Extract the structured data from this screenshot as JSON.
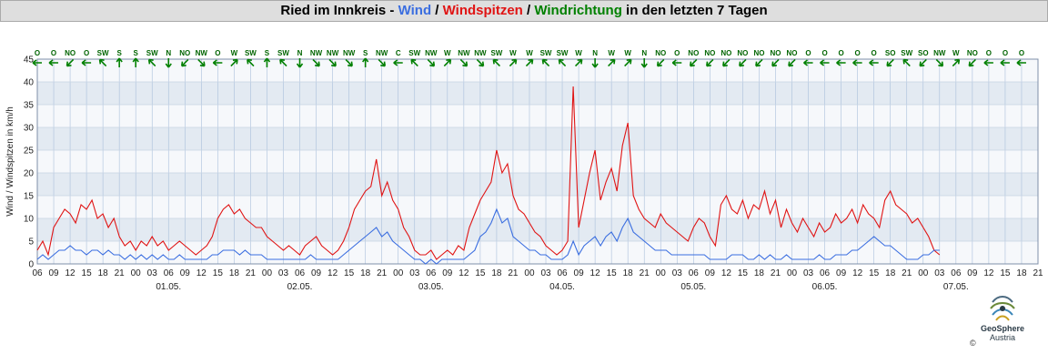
{
  "header": {
    "station": "Ried im Innkreis",
    "sep1": " - ",
    "wind": "Wind",
    "slash1": " / ",
    "gusts": "Windspitzen",
    "slash2": " / ",
    "direction": "Windrichtung",
    "suffix": " in den letzten 7 Tagen"
  },
  "footer": {
    "logo_name": "GeoSphere",
    "logo_sub": "Austria",
    "copyright": "©"
  },
  "colors": {
    "wind": "#3b6ee0",
    "gusts": "#e01414",
    "direction": "#008000",
    "band_dark": "#e3eaf2",
    "band_light": "#f6f8fb",
    "grid": "#a9bfdb"
  },
  "chart_data": {
    "type": "line",
    "ylabel": "Wind / Windspitzen in km/h",
    "ylim": [
      0,
      45
    ],
    "yticks": [
      0,
      5,
      10,
      15,
      20,
      25,
      30,
      35,
      40,
      45
    ],
    "xlim_hours": [
      0,
      165
    ],
    "x_tick_labels": [
      "06",
      "09",
      "12",
      "15",
      "18",
      "21",
      "00",
      "03",
      "06",
      "09",
      "12",
      "15",
      "18",
      "21",
      "00",
      "03",
      "06",
      "09",
      "12",
      "15",
      "18",
      "21",
      "00",
      "03",
      "06",
      "09",
      "12",
      "15",
      "18",
      "21",
      "00",
      "03",
      "06",
      "09",
      "12",
      "15",
      "18",
      "21",
      "00",
      "03",
      "06",
      "09",
      "12",
      "15",
      "18",
      "21",
      "00",
      "03",
      "06",
      "09",
      "12",
      "15",
      "18",
      "21",
      "00",
      "03",
      "06",
      "09",
      "12",
      "15",
      "18",
      "21"
    ],
    "day_labels": [
      {
        "label": "01.05.",
        "hour": 30
      },
      {
        "label": "02.05.",
        "hour": 54
      },
      {
        "label": "03.05.",
        "hour": 78
      },
      {
        "label": "04.05.",
        "hour": 102
      },
      {
        "label": "05.05.",
        "hour": 126
      },
      {
        "label": "06.05.",
        "hour": 150
      },
      {
        "label": "07.05.",
        "hour": 174
      }
    ],
    "series": [
      {
        "name": "Windspitzen",
        "x": [
          0,
          1,
          2,
          3,
          4,
          5,
          6,
          7,
          8,
          9,
          10,
          11,
          12,
          13,
          14,
          15,
          16,
          17,
          18,
          19,
          20,
          21,
          22,
          23,
          24,
          25,
          26,
          27,
          28,
          29,
          30,
          31,
          32,
          33,
          34,
          35,
          36,
          37,
          38,
          39,
          40,
          41,
          42,
          43,
          44,
          45,
          46,
          47,
          48,
          49,
          50,
          51,
          52,
          53,
          54,
          55,
          56,
          57,
          58,
          59,
          60,
          61,
          62,
          63,
          64,
          65,
          66,
          67,
          68,
          69,
          70,
          71,
          72,
          73,
          74,
          75,
          76,
          77,
          78,
          79,
          80,
          81,
          82,
          83,
          84,
          85,
          86,
          87,
          88,
          89,
          90,
          91,
          92,
          93,
          94,
          95,
          96,
          97,
          98,
          99,
          100,
          101,
          102,
          103,
          104,
          105,
          106,
          107,
          108,
          109,
          110,
          111,
          112,
          113,
          114,
          115,
          116,
          117,
          118,
          119,
          120,
          121,
          122,
          123,
          124,
          125,
          126,
          127,
          128,
          129,
          130,
          131,
          132,
          133,
          134,
          135,
          136,
          137,
          138,
          139,
          140,
          141,
          142,
          143,
          144,
          145,
          146,
          147,
          148,
          149,
          150,
          151,
          152,
          153,
          154,
          155,
          156,
          157,
          158,
          159,
          160,
          161,
          162,
          163,
          164,
          165
        ],
        "values": [
          3,
          5,
          2,
          8,
          10,
          12,
          11,
          9,
          13,
          12,
          14,
          10,
          11,
          8,
          10,
          6,
          4,
          5,
          3,
          5,
          4,
          6,
          4,
          5,
          3,
          4,
          5,
          4,
          3,
          2,
          3,
          4,
          6,
          10,
          12,
          13,
          11,
          12,
          10,
          9,
          8,
          8,
          6,
          5,
          4,
          3,
          4,
          3,
          2,
          4,
          5,
          6,
          4,
          3,
          2,
          3,
          5,
          8,
          12,
          14,
          16,
          17,
          23,
          15,
          18,
          14,
          12,
          8,
          6,
          3,
          2,
          2,
          3,
          1,
          2,
          3,
          2,
          4,
          3,
          8,
          11,
          14,
          16,
          18,
          25,
          20,
          22,
          15,
          12,
          11,
          9,
          7,
          6,
          4,
          3,
          2,
          3,
          5,
          39,
          8,
          14,
          20,
          25,
          14,
          18,
          21,
          16,
          26,
          31,
          15,
          12,
          10,
          9,
          8,
          11,
          9,
          8,
          7,
          6,
          5,
          8,
          10,
          9,
          6,
          4,
          13,
          15,
          12,
          11,
          14,
          10,
          13,
          12,
          16,
          11,
          14,
          8,
          12,
          9,
          7,
          10,
          8,
          6,
          9,
          7,
          8,
          11,
          9,
          10,
          12,
          9,
          13,
          11,
          10,
          8,
          14,
          16,
          13,
          12,
          11,
          9,
          10,
          8,
          6,
          3,
          2
        ]
      },
      {
        "name": "Wind",
        "x": [
          0,
          1,
          2,
          3,
          4,
          5,
          6,
          7,
          8,
          9,
          10,
          11,
          12,
          13,
          14,
          15,
          16,
          17,
          18,
          19,
          20,
          21,
          22,
          23,
          24,
          25,
          26,
          27,
          28,
          29,
          30,
          31,
          32,
          33,
          34,
          35,
          36,
          37,
          38,
          39,
          40,
          41,
          42,
          43,
          44,
          45,
          46,
          47,
          48,
          49,
          50,
          51,
          52,
          53,
          54,
          55,
          56,
          57,
          58,
          59,
          60,
          61,
          62,
          63,
          64,
          65,
          66,
          67,
          68,
          69,
          70,
          71,
          72,
          73,
          74,
          75,
          76,
          77,
          78,
          79,
          80,
          81,
          82,
          83,
          84,
          85,
          86,
          87,
          88,
          89,
          90,
          91,
          92,
          93,
          94,
          95,
          96,
          97,
          98,
          99,
          100,
          101,
          102,
          103,
          104,
          105,
          106,
          107,
          108,
          109,
          110,
          111,
          112,
          113,
          114,
          115,
          116,
          117,
          118,
          119,
          120,
          121,
          122,
          123,
          124,
          125,
          126,
          127,
          128,
          129,
          130,
          131,
          132,
          133,
          134,
          135,
          136,
          137,
          138,
          139,
          140,
          141,
          142,
          143,
          144,
          145,
          146,
          147,
          148,
          149,
          150,
          151,
          152,
          153,
          154,
          155,
          156,
          157,
          158,
          159,
          160,
          161,
          162,
          163,
          164,
          165
        ],
        "values": [
          1,
          2,
          1,
          2,
          3,
          3,
          4,
          3,
          3,
          2,
          3,
          3,
          2,
          3,
          2,
          2,
          1,
          2,
          1,
          2,
          1,
          2,
          1,
          2,
          1,
          1,
          2,
          1,
          1,
          1,
          1,
          1,
          2,
          2,
          3,
          3,
          3,
          2,
          3,
          2,
          2,
          2,
          1,
          1,
          1,
          1,
          1,
          1,
          1,
          1,
          2,
          1,
          1,
          1,
          1,
          1,
          2,
          3,
          4,
          5,
          6,
          7,
          8,
          6,
          7,
          5,
          4,
          3,
          2,
          1,
          1,
          0,
          1,
          0,
          1,
          1,
          1,
          1,
          1,
          2,
          3,
          6,
          7,
          9,
          12,
          9,
          10,
          6,
          5,
          4,
          3,
          3,
          2,
          2,
          1,
          1,
          1,
          2,
          5,
          2,
          4,
          5,
          6,
          4,
          6,
          7,
          5,
          8,
          10,
          7,
          6,
          5,
          4,
          3,
          3,
          3,
          2,
          2,
          2,
          2,
          2,
          2,
          2,
          1,
          1,
          1,
          1,
          2,
          2,
          2,
          1,
          1,
          2,
          1,
          2,
          1,
          1,
          2,
          1,
          1,
          1,
          1,
          1,
          2,
          1,
          1,
          2,
          2,
          2,
          3,
          3,
          4,
          5,
          6,
          5,
          4,
          4,
          3,
          2,
          1,
          1,
          1,
          2,
          2,
          3,
          3
        ]
      }
    ],
    "directions": [
      "O",
      "O",
      "NO",
      "O",
      "SW",
      "S",
      "S",
      "SW",
      "N",
      "NO",
      "NW",
      "O",
      "W",
      "SW",
      "S",
      "SW",
      "N",
      "NW",
      "NW",
      "NW",
      "S",
      "NW",
      "C",
      "SW",
      "NW",
      "W",
      "NW",
      "NW",
      "SW",
      "W",
      "W",
      "SW",
      "SW",
      "W",
      "N",
      "W",
      "W",
      "N",
      "NO",
      "O",
      "NO",
      "NO",
      "NO",
      "NO",
      "NO",
      "NO",
      "NO",
      "O",
      "O",
      "O",
      "O",
      "O",
      "SO",
      "SW",
      "SO",
      "NW",
      "W",
      "NO",
      "O",
      "O",
      "O"
    ],
    "direction_angles": [
      0,
      0,
      315,
      0,
      45,
      90,
      90,
      45,
      270,
      315,
      225,
      0,
      135,
      45,
      90,
      45,
      270,
      225,
      225,
      225,
      90,
      225,
      0,
      45,
      225,
      135,
      225,
      225,
      45,
      135,
      135,
      45,
      45,
      135,
      270,
      135,
      135,
      270,
      315,
      0,
      315,
      315,
      315,
      315,
      315,
      315,
      315,
      0,
      0,
      0,
      0,
      0,
      315,
      45,
      315,
      225,
      135,
      315,
      0,
      0,
      0
    ]
  }
}
